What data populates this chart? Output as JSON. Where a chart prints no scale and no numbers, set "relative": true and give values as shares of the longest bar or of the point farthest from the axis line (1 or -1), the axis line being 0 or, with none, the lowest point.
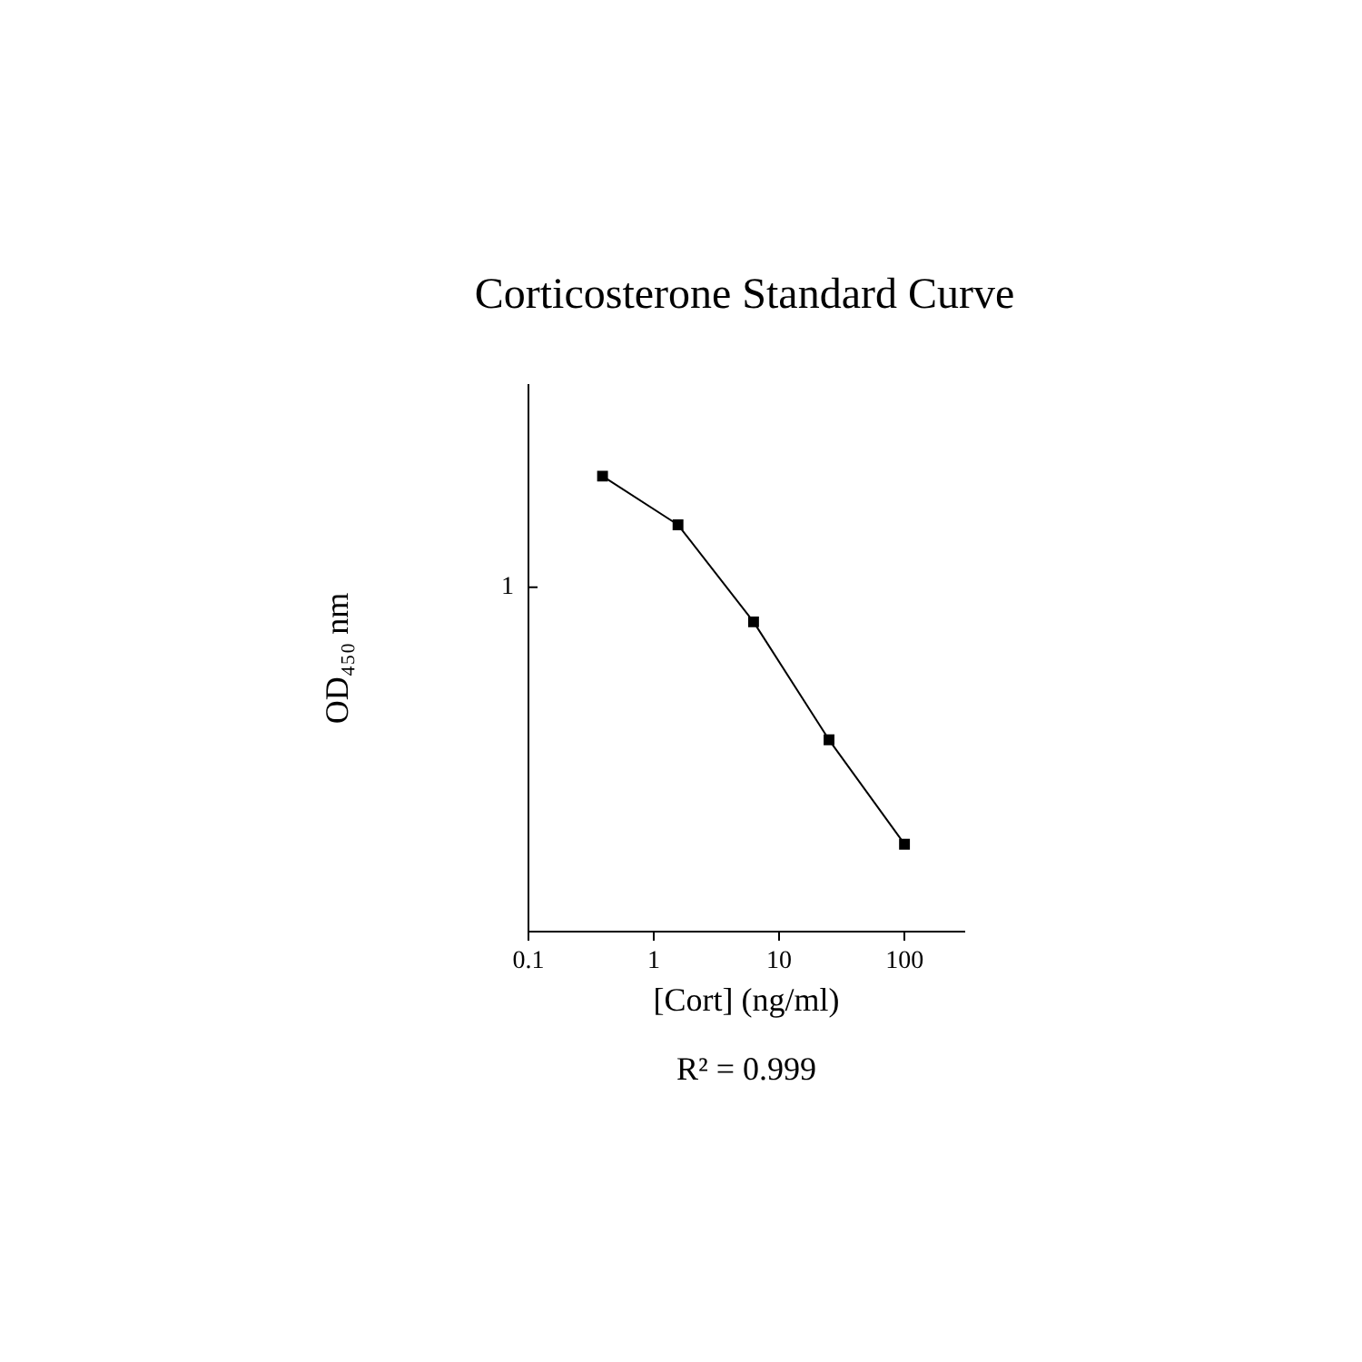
{
  "chart_data": {
    "type": "line",
    "title": "Corticosterone Standard Curve",
    "xlabel": "[Cort] (ng/ml)",
    "ylabel": "OD₄₅₀ nm",
    "annotations": [
      "R² = 0.999",
      "1"
    ],
    "relative": true,
    "x": [
      0.39,
      1.56,
      6.25,
      25,
      100
    ],
    "values": [
      1,
      0.893,
      0.68,
      0.421,
      0.192
    ],
    "color": "#000000",
    "xlim": [
      0.1,
      300
    ],
    "xticks": [
      0.1,
      1,
      10,
      100
    ],
    "log": "x",
    "grid": false,
    "legend": false,
    "marker": "square",
    "line_style": "solid"
  }
}
